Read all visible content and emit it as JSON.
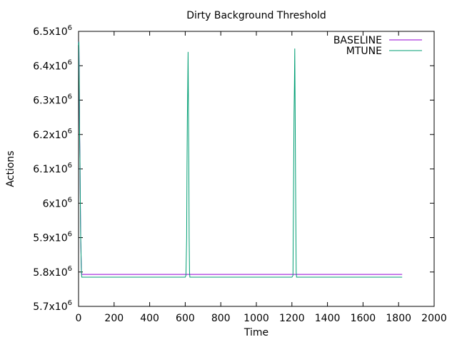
{
  "chart_data": {
    "type": "line",
    "title": "Dirty Background Threshold",
    "xlabel": "Time",
    "ylabel": "Actions",
    "xlim": [
      0,
      2000
    ],
    "ylim": [
      5700000,
      6500000
    ],
    "x_ticks": [
      0,
      200,
      400,
      600,
      800,
      1000,
      1200,
      1400,
      1600,
      1800,
      2000
    ],
    "y_ticks": [
      {
        "value": 5700000,
        "base": "5.7x10",
        "exp": "6"
      },
      {
        "value": 5800000,
        "base": "5.8x10",
        "exp": "6"
      },
      {
        "value": 5900000,
        "base": "5.9x10",
        "exp": "6"
      },
      {
        "value": 6000000,
        "base": "6x10",
        "exp": "6"
      },
      {
        "value": 6100000,
        "base": "6.1x10",
        "exp": "6"
      },
      {
        "value": 6200000,
        "base": "6.2x10",
        "exp": "6"
      },
      {
        "value": 6300000,
        "base": "6.3x10",
        "exp": "6"
      },
      {
        "value": 6400000,
        "base": "6.4x10",
        "exp": "6"
      },
      {
        "value": 6500000,
        "base": "6.5x10",
        "exp": "6"
      }
    ],
    "grid": false,
    "legend_position": "top-right",
    "series": [
      {
        "name": "BASELINE",
        "color": "#9400d3",
        "x": [
          0,
          2,
          4,
          6,
          8,
          10,
          12,
          14,
          16,
          18,
          20,
          22,
          1820
        ],
        "y": [
          6470000,
          6460000,
          6350000,
          6200000,
          6130000,
          6000000,
          5900000,
          5850000,
          5800000,
          5793000,
          5793000,
          5793000,
          5793000
        ]
      },
      {
        "name": "MTUNE",
        "color": "#009e73",
        "x": [
          0,
          2,
          4,
          6,
          8,
          10,
          12,
          14,
          16,
          18,
          20,
          22,
          600,
          604,
          608,
          610,
          612,
          614,
          616,
          618,
          620,
          622,
          624,
          626,
          628,
          1200,
          1206,
          1210,
          1212,
          1214,
          1216,
          1218,
          1220,
          1222,
          1224,
          1226,
          1228,
          1820
        ],
        "y": [
          6460000,
          6470000,
          6350000,
          6200000,
          6120000,
          6000000,
          5900000,
          5850000,
          5800000,
          5785000,
          5785000,
          5785000,
          5785000,
          5790000,
          5900000,
          6110000,
          6250000,
          6330000,
          6440000,
          6280000,
          6120000,
          5900000,
          5800000,
          5785000,
          5785000,
          5785000,
          5790000,
          6110000,
          6260000,
          6340000,
          6450000,
          6280000,
          6100000,
          5950000,
          5800000,
          5785000,
          5785000,
          5785000
        ]
      }
    ]
  }
}
